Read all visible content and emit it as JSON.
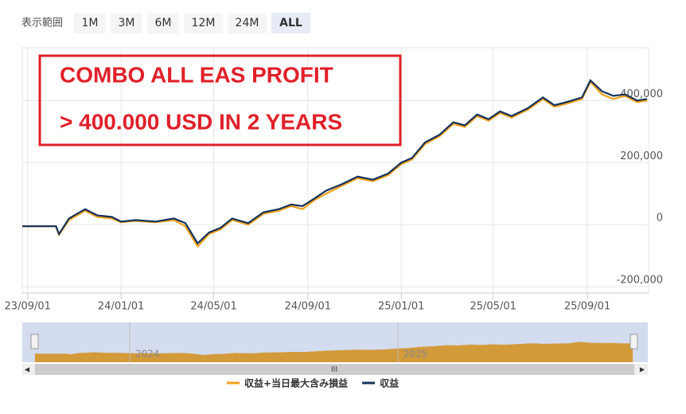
{
  "range_selector": {
    "label": "表示範囲",
    "buttons": [
      "1M",
      "3M",
      "6M",
      "12M",
      "24M",
      "ALL"
    ],
    "active": 5
  },
  "annotation": {
    "line1": "COMBO ALL EAS PROFIT",
    "line2": "> 400.000 USD IN 2 YEARS"
  },
  "navigator": {
    "labels": [
      "2024",
      "2025"
    ]
  },
  "chart_data": {
    "type": "line",
    "x": [
      "23/08/25",
      "23/09/15",
      "23/10/08",
      "23/10/12",
      "23/10/25",
      "23/11/15",
      "23/12/01",
      "23/12/20",
      "24/01/01",
      "24/01/20",
      "24/02/15",
      "24/03/10",
      "24/03/25",
      "24/04/10",
      "24/04/25",
      "24/05/10",
      "24/05/25",
      "24/06/15",
      "24/07/05",
      "24/07/25",
      "24/08/10",
      "24/08/25",
      "24/09/10",
      "24/09/25",
      "24/10/15",
      "24/11/05",
      "24/11/25",
      "24/12/15",
      "25/01/01",
      "25/01/15",
      "25/02/01",
      "25/02/20",
      "25/03/10",
      "25/03/25",
      "25/04/10",
      "25/04/25",
      "25/05/10",
      "25/05/25",
      "25/06/15",
      "25/07/05",
      "25/07/20",
      "25/08/05",
      "25/08/25",
      "25/09/05",
      "25/09/20",
      "25/10/05",
      "25/10/20",
      "25/11/05",
      "25/11/18"
    ],
    "series": [
      {
        "name": "収益+当日最大含み損益",
        "color": "#f0a01a",
        "values": [
          -5000,
          -5000,
          -5000,
          -32000,
          15000,
          45000,
          25000,
          20000,
          8000,
          12000,
          8000,
          15000,
          -5000,
          -70000,
          -30000,
          -15000,
          15000,
          0,
          35000,
          45000,
          60000,
          50000,
          80000,
          100000,
          125000,
          150000,
          140000,
          160000,
          195000,
          210000,
          260000,
          285000,
          325000,
          315000,
          350000,
          335000,
          360000,
          345000,
          370000,
          405000,
          380000,
          390000,
          405000,
          460000,
          420000,
          405000,
          415000,
          395000,
          400000
        ]
      },
      {
        "name": "収益",
        "color": "#14325a",
        "values": [
          -5000,
          -5000,
          -5000,
          -30000,
          20000,
          50000,
          30000,
          25000,
          10000,
          15000,
          10000,
          20000,
          5000,
          -60000,
          -25000,
          -10000,
          20000,
          5000,
          40000,
          50000,
          65000,
          60000,
          85000,
          110000,
          130000,
          155000,
          145000,
          165000,
          200000,
          215000,
          265000,
          290000,
          330000,
          320000,
          355000,
          340000,
          365000,
          350000,
          375000,
          410000,
          385000,
          395000,
          410000,
          465000,
          430000,
          415000,
          420000,
          400000,
          405000
        ]
      }
    ],
    "xlim": [
      "23/08/25",
      "25/11/20"
    ],
    "xticks": [
      "23/09/01",
      "24/01/01",
      "24/05/01",
      "24/09/01",
      "25/01/01",
      "25/05/01",
      "25/09/01"
    ],
    "ylim": [
      -220000,
      570000
    ],
    "yticks": [
      {
        "value": -200000,
        "label": "-200,000"
      },
      0,
      {
        "value": 200000,
        "label": "200,000"
      },
      {
        "value": 400000,
        "label": "400,000"
      }
    ],
    "grid": true
  }
}
